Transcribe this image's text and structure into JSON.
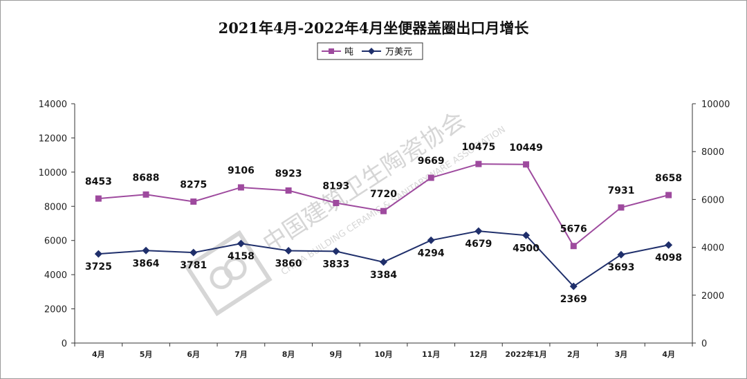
{
  "chart_data": {
    "type": "line",
    "title": "2021年4月-2022年4月坐便器盖圈出口月增长",
    "categories": [
      "4月",
      "5月",
      "6月",
      "7月",
      "8月",
      "9月",
      "10月",
      "11月",
      "12月",
      "2022年1月",
      "2月",
      "3月",
      "4月"
    ],
    "series": [
      {
        "name": "吨",
        "axis": "left",
        "color": "#9e4a9e",
        "values": [
          8453,
          8688,
          8275,
          9106,
          8923,
          8193,
          7720,
          9669,
          10475,
          10449,
          5676,
          7931,
          8658
        ]
      },
      {
        "name": "万美元",
        "axis": "right",
        "color": "#1f2f6b",
        "values": [
          3725,
          3864,
          3781,
          4158,
          3860,
          3833,
          3384,
          4294,
          4679,
          4500,
          2369,
          3693,
          4098
        ]
      }
    ],
    "left_axis": {
      "ylim": [
        0,
        14000
      ],
      "ticks": [
        "0",
        "2000",
        "4000",
        "6000",
        "8000",
        "10000",
        "12000",
        "14000"
      ]
    },
    "right_axis": {
      "ylim": [
        0,
        10000
      ],
      "ticks": [
        "0",
        "2000",
        "4000",
        "6000",
        "8000",
        "10000"
      ]
    },
    "grid": false,
    "legend": "top-center"
  },
  "watermark": {
    "cn": "中国建筑卫生陶瓷协会",
    "en": "CHINA BUILDING CERAMIC & SANITARYWARE ASSOCIATION"
  }
}
